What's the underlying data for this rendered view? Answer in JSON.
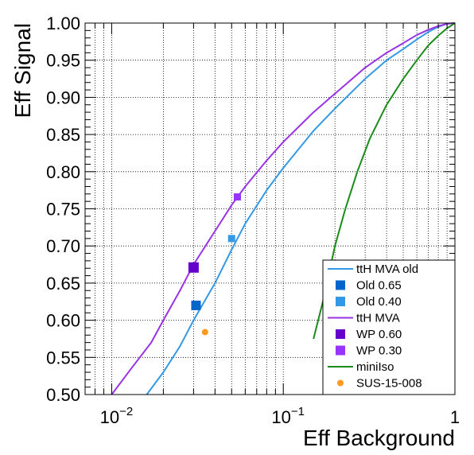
{
  "chart_data": {
    "type": "line",
    "xlabel": "Eff Background",
    "ylabel": "Eff Signal",
    "xscale": "log",
    "xlim": [
      0.007,
      1.0
    ],
    "ylim": [
      0.5,
      1.0
    ],
    "grid": true,
    "legend_position": "bottom-right",
    "x_tick_labels": [
      {
        "value": 0.01,
        "base": "10",
        "exp": "−2"
      },
      {
        "value": 0.1,
        "base": "10",
        "exp": "−1"
      },
      {
        "value": 1,
        "base": "1",
        "exp": ""
      }
    ],
    "y_ticks": [
      0.5,
      0.55,
      0.6,
      0.65,
      0.7,
      0.75,
      0.8,
      0.85,
      0.9,
      0.95,
      1.0
    ],
    "y_tick_labels": [
      "0.50",
      "0.55",
      "0.60",
      "0.65",
      "0.70",
      "0.75",
      "0.80",
      "0.85",
      "0.90",
      "0.95",
      "1.00"
    ],
    "series": [
      {
        "name": "ttH MVA old",
        "kind": "line",
        "color": "#3399e6",
        "points": [
          [
            0.016,
            0.5
          ],
          [
            0.02,
            0.53
          ],
          [
            0.025,
            0.565
          ],
          [
            0.03,
            0.6
          ],
          [
            0.04,
            0.65
          ],
          [
            0.05,
            0.695
          ],
          [
            0.06,
            0.73
          ],
          [
            0.08,
            0.775
          ],
          [
            0.1,
            0.805
          ],
          [
            0.15,
            0.855
          ],
          [
            0.2,
            0.885
          ],
          [
            0.3,
            0.925
          ],
          [
            0.4,
            0.95
          ],
          [
            0.5,
            0.965
          ],
          [
            0.6,
            0.978
          ],
          [
            0.7,
            0.988
          ],
          [
            0.8,
            0.995
          ],
          [
            0.9,
            0.999
          ],
          [
            1.0,
            1.0
          ]
        ]
      },
      {
        "name": "ttH MVA",
        "kind": "line",
        "color": "#9933e6",
        "points": [
          [
            0.01,
            0.5
          ],
          [
            0.013,
            0.535
          ],
          [
            0.017,
            0.57
          ],
          [
            0.02,
            0.6
          ],
          [
            0.025,
            0.64
          ],
          [
            0.03,
            0.675
          ],
          [
            0.04,
            0.72
          ],
          [
            0.05,
            0.755
          ],
          [
            0.06,
            0.78
          ],
          [
            0.08,
            0.815
          ],
          [
            0.1,
            0.84
          ],
          [
            0.15,
            0.88
          ],
          [
            0.2,
            0.905
          ],
          [
            0.3,
            0.94
          ],
          [
            0.4,
            0.96
          ],
          [
            0.5,
            0.973
          ],
          [
            0.6,
            0.984
          ],
          [
            0.7,
            0.991
          ],
          [
            0.8,
            0.996
          ],
          [
            0.9,
            0.999
          ],
          [
            1.0,
            1.0
          ]
        ]
      },
      {
        "name": "miniIso",
        "kind": "line",
        "color": "#1a8c1a",
        "points": [
          [
            0.15,
            0.575
          ],
          [
            0.17,
            0.625
          ],
          [
            0.2,
            0.7
          ],
          [
            0.23,
            0.75
          ],
          [
            0.27,
            0.8
          ],
          [
            0.32,
            0.845
          ],
          [
            0.4,
            0.89
          ],
          [
            0.5,
            0.925
          ],
          [
            0.6,
            0.95
          ],
          [
            0.7,
            0.97
          ],
          [
            0.8,
            0.983
          ],
          [
            0.9,
            0.993
          ],
          [
            1.0,
            1.0
          ]
        ]
      },
      {
        "name": "Old 0.65",
        "kind": "marker",
        "color": "#0066cc",
        "size": 12,
        "points": [
          [
            0.031,
            0.62
          ]
        ]
      },
      {
        "name": "Old 0.40",
        "kind": "marker",
        "color": "#3399e6",
        "size": 9,
        "points": [
          [
            0.05,
            0.71
          ]
        ]
      },
      {
        "name": "WP 0.60",
        "kind": "marker",
        "color": "#6600cc",
        "size": 13,
        "points": [
          [
            0.03,
            0.671
          ]
        ]
      },
      {
        "name": "WP 0.30",
        "kind": "marker",
        "color": "#9933ff",
        "size": 9,
        "points": [
          [
            0.054,
            0.766
          ]
        ]
      },
      {
        "name": "SUS-15-008",
        "kind": "dot",
        "color": "#ff9922",
        "size": 8,
        "points": [
          [
            0.035,
            0.584
          ]
        ]
      }
    ],
    "legend": [
      {
        "label": "ttH MVA old",
        "kind": "line",
        "color": "#3399e6"
      },
      {
        "label": "Old 0.65",
        "kind": "square",
        "color": "#0066cc"
      },
      {
        "label": "Old 0.40",
        "kind": "square",
        "color": "#3399e6"
      },
      {
        "label": "ttH MVA",
        "kind": "line",
        "color": "#9933e6"
      },
      {
        "label": "WP 0.60",
        "kind": "square",
        "color": "#6600cc"
      },
      {
        "label": "WP 0.30",
        "kind": "square",
        "color": "#9933ff"
      },
      {
        "label": "miniIso",
        "kind": "line",
        "color": "#1a8c1a"
      },
      {
        "label": "SUS-15-008",
        "kind": "dot",
        "color": "#ff9922"
      }
    ]
  }
}
